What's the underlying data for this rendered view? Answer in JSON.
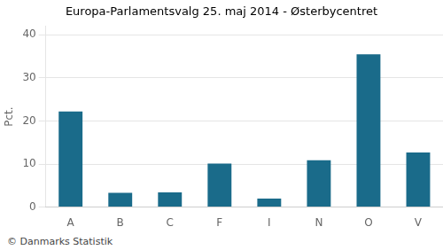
{
  "chart_data": {
    "type": "bar",
    "title": "Europa-Parlamentsvalg 25. maj 2014 - Østerbycentret",
    "ylabel": "Pct.",
    "annotations": [
      "© Danmarks Statistik"
    ],
    "categories": [
      "A",
      "B",
      "C",
      "F",
      "I",
      "N",
      "O",
      "V"
    ],
    "values": [
      22.2,
      3.3,
      3.4,
      10.1,
      2.0,
      10.9,
      35.5,
      12.7
    ],
    "color": "#1a6b8a",
    "ylim": [
      0,
      42
    ],
    "yticks": [
      0,
      10,
      20,
      30,
      40
    ],
    "grid": true
  }
}
